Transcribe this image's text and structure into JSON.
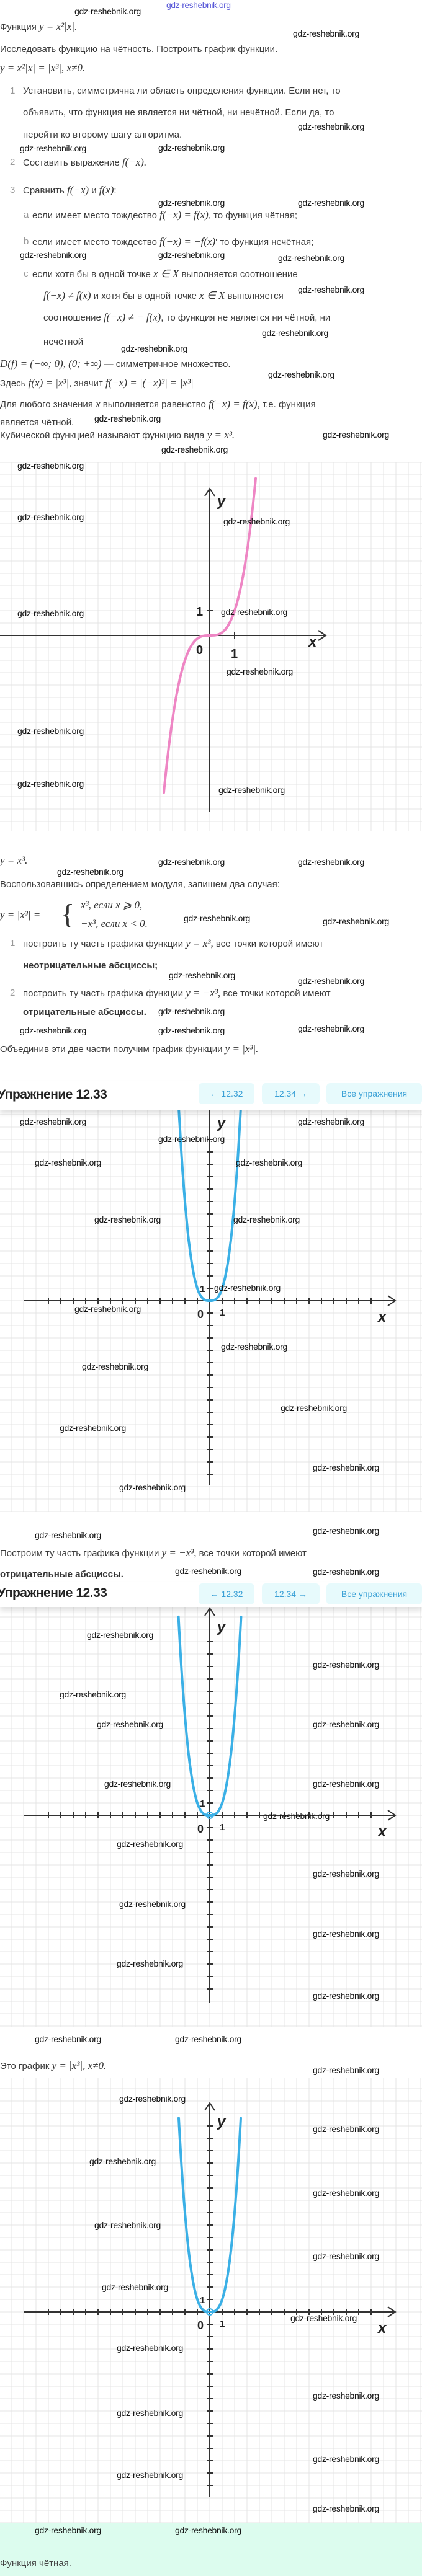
{
  "watermark": "gdz-reshebnik.org",
  "lines": [
    {
      "parts": [
        {
          "t": "Функция "
        },
        {
          "m": "y = x²|x|."
        }
      ]
    },
    {
      "parts": [
        {
          "t": "Исследовать функцию на чётность. Построить график функции."
        }
      ]
    },
    {
      "parts": [
        {
          "m": "y = x²|x| = |x³|, x≠0."
        }
      ]
    },
    {
      "marker": "1",
      "parts": [
        {
          "t": "Установить, симметрична ли область определения функции. Если нет, то"
        }
      ]
    },
    {
      "parts": [
        {
          "t": "объявить, что функция не является ни чётной, ни нечётной. Если да, то"
        }
      ]
    },
    {
      "parts": [
        {
          "t": "перейти ко второму шагу алгоритма."
        }
      ]
    },
    {
      "marker": "2",
      "parts": [
        {
          "t": "Составить выражение "
        },
        {
          "m": "f(−x)."
        }
      ]
    },
    {
      "marker": "3",
      "parts": [
        {
          "t": "Сравнить "
        },
        {
          "m": "f(−x)"
        },
        {
          "t": " и "
        },
        {
          "m": "f(x)"
        },
        {
          "t": ":"
        }
      ]
    },
    {
      "marker": "a",
      "parts": [
        {
          "t": "если имеет место тождество "
        },
        {
          "m": "f(−x) = f(x)"
        },
        {
          "t": ", то функция чётная;"
        }
      ]
    },
    {
      "marker": "b",
      "parts": [
        {
          "t": "если имеет место тождество "
        },
        {
          "m": "f(−x) = −f(x)"
        },
        {
          "t": "' то функция нечётная;"
        }
      ]
    },
    {
      "marker": "c",
      "parts": [
        {
          "t": "если хотя бы в одной точке "
        },
        {
          "m": "x ∈ X"
        },
        {
          "t": " выполняется соотношение"
        }
      ]
    },
    {
      "parts": [
        {
          "m": "f(−x) ≠ f(x)"
        },
        {
          "t": " и хотя бы в одной точке "
        },
        {
          "m": "x ∈ X"
        },
        {
          "t": " выполняется"
        }
      ]
    },
    {
      "parts": [
        {
          "t": "соотношение "
        },
        {
          "m": "f(−x) ≠ − f(x)"
        },
        {
          "t": ", то функция не является ни чётной, ни"
        }
      ]
    },
    {
      "parts": [
        {
          "t": "нечётной"
        }
      ]
    },
    {
      "parts": [
        {
          "m": "D(f) = (−∞; 0), (0; +∞)"
        },
        {
          "t": " — симметричное множество."
        }
      ]
    },
    {
      "parts": [
        {
          "t": "Здесь "
        },
        {
          "m": "f(x) = |x³|"
        },
        {
          "t": ", значит "
        },
        {
          "m": "f(−x) = |(−x)³| = |x³|"
        }
      ]
    },
    {
      "parts": [
        {
          "t": "Для любого значения "
        },
        {
          "m": "x"
        },
        {
          "t": " выполняется равенство "
        },
        {
          "m": "f(−x) = f(x)"
        },
        {
          "t": ", т.е. функция"
        }
      ]
    },
    {
      "parts": [
        {
          "t": "является чётной."
        }
      ]
    },
    {
      "parts": [
        {
          "t": "Кубической функцией называют функцию вида "
        },
        {
          "m": "y = x³."
        }
      ]
    },
    {
      "parts": [
        {
          "m": "y = x³."
        }
      ]
    },
    {
      "parts": [
        {
          "t": "Воспользовавшись определением модуля, запишем два случая:"
        }
      ]
    },
    {
      "marker": "1",
      "parts": [
        {
          "t": "построить ту часть графика функции "
        },
        {
          "m": "y = x³,"
        },
        {
          "t": " все точки которой имеют"
        }
      ]
    },
    {
      "parts": [
        {
          "t": "неотрицательные абсциссы;"
        }
      ]
    },
    {
      "marker": "2",
      "parts": [
        {
          "t": "построить ту часть графика функции "
        },
        {
          "m": "y = −x³,"
        },
        {
          "t": " все точки которой имеют"
        }
      ]
    },
    {
      "parts": [
        {
          "t": "отрицательные абсциссы."
        }
      ]
    },
    {
      "parts": [
        {
          "t": "Объединив эти две части получим график функции "
        },
        {
          "m": "y = |x³|."
        }
      ]
    },
    {
      "parts": [
        {
          "t": "Построим ту часть графика функции "
        },
        {
          "m": "y = −x³,"
        },
        {
          "t": " все точки которой имеют"
        }
      ]
    },
    {
      "parts": [
        {
          "t": "отрицательные абсциссы."
        }
      ]
    },
    {
      "parts": [
        {
          "t": "Это график "
        },
        {
          "m": "y = |x³|, x≠0."
        }
      ]
    }
  ],
  "piecewise": {
    "lhs": "y = |x³| =",
    "case1": "x³, если x ⩾ 0,",
    "case2": "−x³, если x  <  0."
  },
  "exercise_header": {
    "title": "Упражнение 12.33",
    "prev_label": "← 12.32",
    "next_label": "12.34 →",
    "all_label": "Все упражнения",
    "accent_color": "#3aa0d6",
    "button_bg": "#e7fafc"
  },
  "graphs": [
    {
      "function": "y = x³",
      "color": "#ee86c4",
      "x_label": "x",
      "y_label": "y",
      "origin_label": "0",
      "x_tick_label": "1",
      "y_tick_label": "1",
      "hollow_origin": false,
      "ticks": "unit-only"
    },
    {
      "function": "y = |x³|",
      "color": "#3bb0e6",
      "x_label": "x",
      "y_label": "y",
      "origin_label": "0",
      "x_tick_label": "1",
      "y_tick_label": "1",
      "hollow_origin": false,
      "ticks": "every-unit"
    },
    {
      "function": "y = |x³|",
      "color": "#3bb0e6",
      "x_label": "x",
      "y_label": "y",
      "origin_label": "0",
      "x_tick_label": "1",
      "y_tick_label": "1",
      "hollow_origin": true,
      "ticks": "every-unit"
    },
    {
      "function": "y = |x³|",
      "color": "#3bb0e6",
      "x_label": "x",
      "y_label": "y",
      "origin_label": "0",
      "x_tick_label": "1",
      "y_tick_label": "1",
      "hollow_origin": true,
      "ticks": "every-unit"
    }
  ],
  "answer": {
    "text": "Функция чётная.",
    "background": "#dcfcee"
  }
}
